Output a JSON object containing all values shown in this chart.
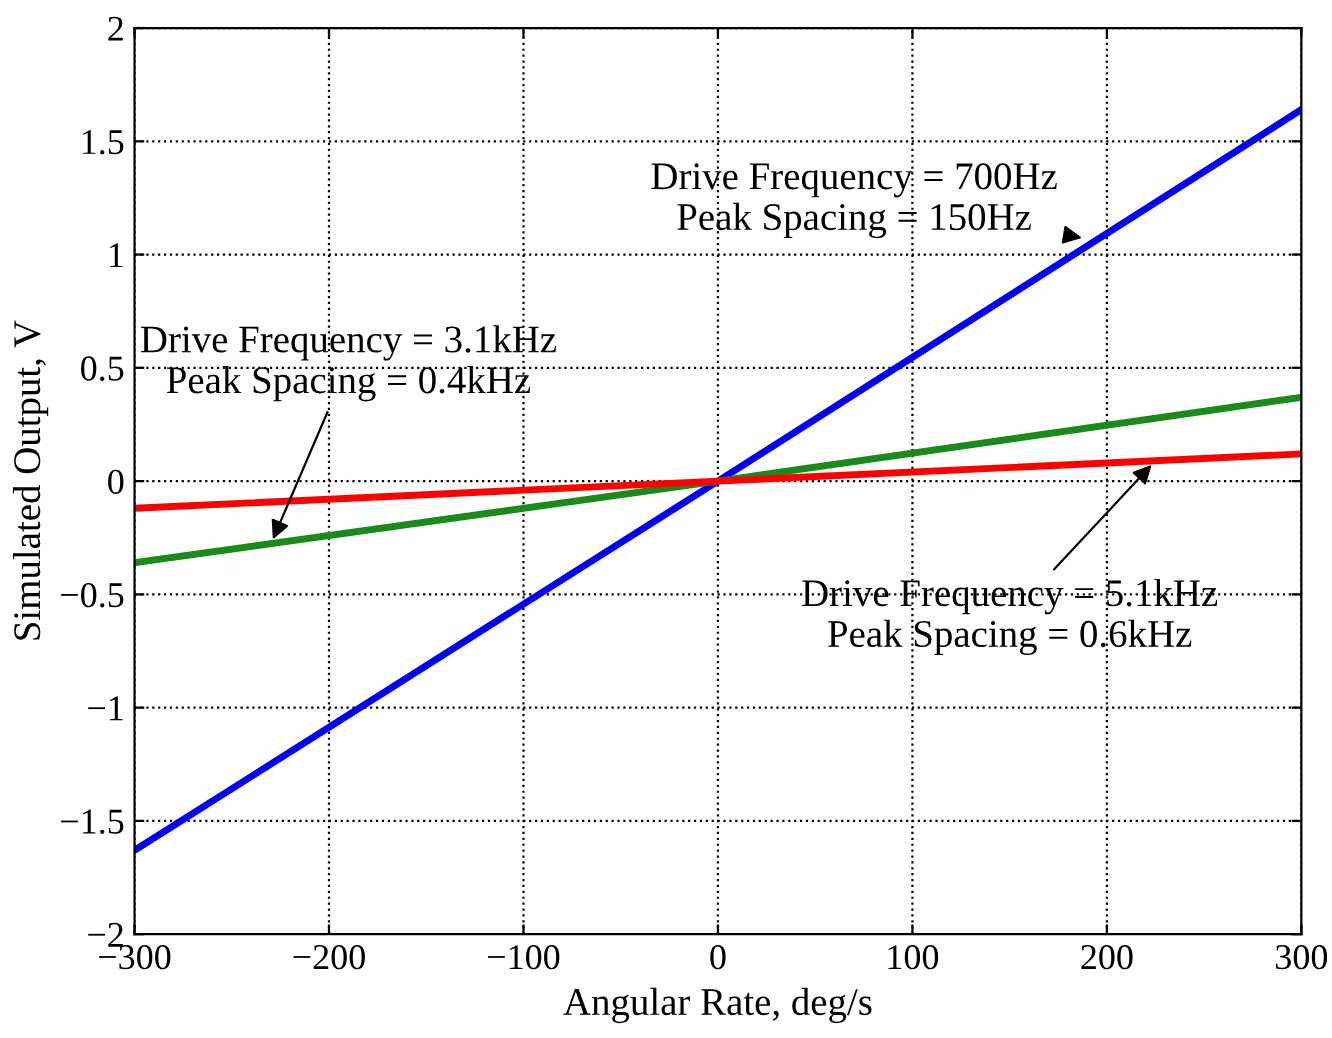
{
  "chart_data": {
    "type": "line",
    "xlabel": "Angular Rate, deg/s",
    "ylabel": "Simulated Output, V",
    "x": [
      -300,
      0,
      300
    ],
    "series": [
      {
        "color": "#0000ff",
        "values": [
          -1.63,
          0,
          1.64
        ]
      },
      {
        "color": "#1a8a1a",
        "values": [
          -0.36,
          0,
          0.37
        ]
      },
      {
        "color": "#ff0000",
        "values": [
          -0.12,
          0,
          0.12
        ]
      }
    ],
    "annotations": [
      {
        "text": "Drive Frequency = 700Hz\nPeak Spacing = 150Hz",
        "x": 190,
        "y": 1.07
      },
      {
        "text": "Drive Frequency = 3.1kHz\nPeak Spacing = 0.4kHz",
        "x": -230,
        "y": -0.28
      },
      {
        "text": "Drive Frequency = 5.1kHz\nPeak Spacing = 0.6kHz",
        "x": 225,
        "y": 0.09
      }
    ],
    "xlim": [
      -300,
      300
    ],
    "xticks": [
      -300,
      -200,
      -100,
      0,
      100,
      200,
      300
    ],
    "ylim": [
      -2,
      2
    ],
    "yticks": [
      -2,
      -1.5,
      -1,
      -0.5,
      0,
      0.5,
      1,
      1.5,
      2
    ],
    "grid": true,
    "line_style": "solid",
    "marker": "none"
  }
}
